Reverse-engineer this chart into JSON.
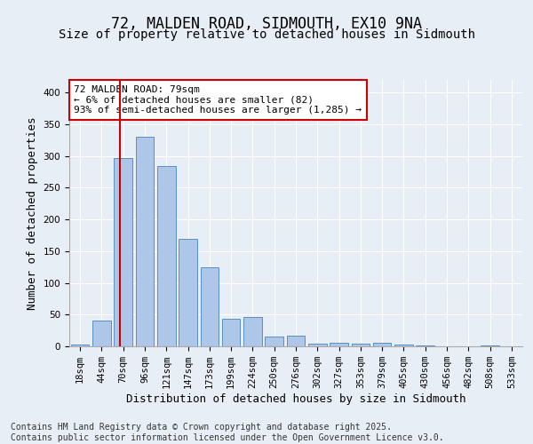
{
  "title": "72, MALDEN ROAD, SIDMOUTH, EX10 9NA",
  "subtitle": "Size of property relative to detached houses in Sidmouth",
  "xlabel": "Distribution of detached houses by size in Sidmouth",
  "ylabel": "Number of detached properties",
  "categories": [
    "18sqm",
    "44sqm",
    "70sqm",
    "96sqm",
    "121sqm",
    "147sqm",
    "173sqm",
    "199sqm",
    "224sqm",
    "250sqm",
    "276sqm",
    "302sqm",
    "327sqm",
    "353sqm",
    "379sqm",
    "405sqm",
    "430sqm",
    "456sqm",
    "482sqm",
    "508sqm",
    "533sqm"
  ],
  "values": [
    3,
    40,
    297,
    330,
    284,
    169,
    125,
    44,
    46,
    16,
    17,
    4,
    6,
    4,
    6,
    3,
    1,
    0,
    0,
    1,
    0
  ],
  "bar_color": "#aec6e8",
  "bar_edge_color": "#5a8fc2",
  "vline_x_index": 2,
  "vline_color": "#cc0000",
  "annotation_text": "72 MALDEN ROAD: 79sqm\n← 6% of detached houses are smaller (82)\n93% of semi-detached houses are larger (1,285) →",
  "annotation_box_color": "#ffffff",
  "annotation_box_edge": "#cc0000",
  "bg_color": "#e8eef5",
  "plot_bg_color": "#e8eef5",
  "footer": "Contains HM Land Registry data © Crown copyright and database right 2025.\nContains public sector information licensed under the Open Government Licence v3.0.",
  "ylim": [
    0,
    420
  ],
  "title_fontsize": 12,
  "subtitle_fontsize": 10,
  "axis_label_fontsize": 9,
  "tick_fontsize": 7.5,
  "footer_fontsize": 7,
  "annotation_fontsize": 8
}
